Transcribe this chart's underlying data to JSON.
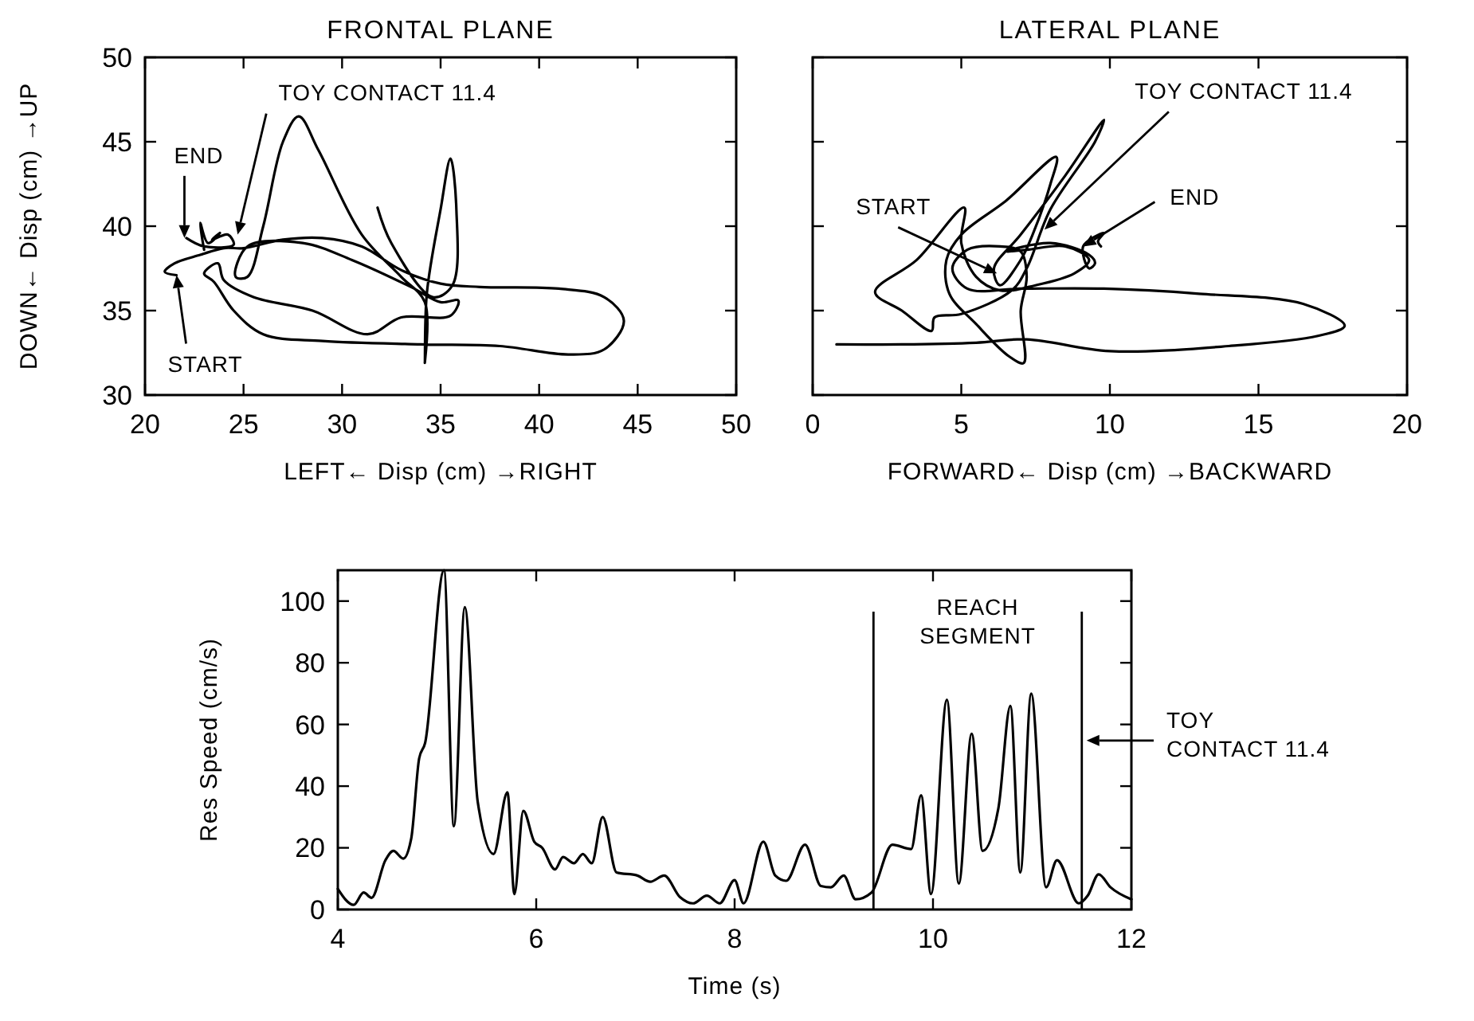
{
  "chart_data": [
    {
      "type": "line",
      "title": "FRONTAL PLANE",
      "xlabel": "LEFT← Disp (cm) →RIGHT",
      "ylabel": "DOWN← Disp (cm) →UP",
      "xlim": [
        20,
        50
      ],
      "ylim": [
        30,
        50
      ],
      "xticks": [
        20,
        25,
        30,
        35,
        40,
        45,
        50
      ],
      "yticks": [
        30,
        35,
        40,
        45,
        50
      ],
      "annotations": [
        {
          "text": "END",
          "x": 22,
          "y": 39.3
        },
        {
          "text": "TOY CONTACT 11.4",
          "x": 24.7,
          "y": 39.5
        },
        {
          "text": "START",
          "x": 21.6,
          "y": 37.1
        }
      ],
      "series": [
        {
          "color": "#000000",
          "x": [
            21.6,
            21.0,
            21.5,
            22.8,
            24.0,
            25.0,
            27.0,
            29.0,
            31.0,
            33.0,
            35.0,
            37.0,
            41.0,
            43.3,
            44.3,
            43.3,
            41.5,
            38.0,
            34.0,
            29.0,
            26.0,
            24.5,
            23.5,
            23.0,
            23.7,
            24.0,
            25.5,
            28.5,
            31.3,
            33.0,
            35.5,
            35.9,
            35.0,
            33.5,
            30.5,
            28.0,
            25.2,
            24.6,
            25.2,
            26.0,
            27.0,
            27.8,
            28.8,
            31.0,
            33.0,
            34.2,
            34.2,
            34.3,
            35.0,
            35.5,
            35.8,
            35.6,
            34.6,
            32.5,
            31.8,
            null,
            23.0,
            22.8,
            23.2,
            23.8,
            23.4,
            24.2,
            24.5,
            23.0,
            22.1
          ],
          "values": [
            37.1,
            37.3,
            37.8,
            38.3,
            38.7,
            38.7,
            39.2,
            39.3,
            38.8,
            37.4,
            36.6,
            36.4,
            36.3,
            35.8,
            34.4,
            32.7,
            32.4,
            32.9,
            33.0,
            33.2,
            33.6,
            35.0,
            36.7,
            37.2,
            37.8,
            36.8,
            35.8,
            35.0,
            33.6,
            34.6,
            34.7,
            35.6,
            35.5,
            36.4,
            38.0,
            39.0,
            38.8,
            37.0,
            37.0,
            40.0,
            45.0,
            46.5,
            44.5,
            39.5,
            37.0,
            35.5,
            31.9,
            36.0,
            41.0,
            44.0,
            41.0,
            36.5,
            35.8,
            39.0,
            41.1,
            null,
            38.6,
            40.2,
            39.0,
            39.6,
            39.2,
            39.5,
            38.9,
            38.8,
            39.3
          ]
        }
      ]
    },
    {
      "type": "line",
      "title": "LATERAL PLANE",
      "xlabel": "FORWARD← Disp (cm) →BACKWARD",
      "xlim": [
        0,
        20
      ],
      "ylim": [
        30,
        50
      ],
      "xticks": [
        0,
        5,
        10,
        15,
        20
      ],
      "yticks": [
        30,
        35,
        40,
        45,
        50
      ],
      "tick_labels": "x",
      "annotations": [
        {
          "text": "START",
          "x": 6.2,
          "y": 37.2
        },
        {
          "text": "TOY CONTACT 11.4",
          "x": 7.8,
          "y": 39.8
        },
        {
          "text": "END",
          "x": 9.1,
          "y": 38.8
        }
      ],
      "series": [
        {
          "color": "#000000",
          "x": [
            0.8,
            3.0,
            5.5,
            7.2,
            10,
            14,
            17,
            17.9,
            16.5,
            13,
            9.8,
            7.0,
            5.2,
            4.7,
            5.2,
            6.3,
            7.0,
            7.2,
            7.0,
            7.1,
            6.6,
            5.5,
            4.6,
            4.5,
            5.0,
            6.5,
            8.2,
            8.0,
            7.4,
            7.0,
            6.3,
            6.1,
            7.0,
            8.5,
            9.8,
            9.5,
            8.0,
            7.2,
            6.7,
            5.0,
            4.1,
            4.0,
            3.0,
            2.1,
            3.5,
            5.1,
            5.0,
            5.5,
            6.3,
            7.5,
            8.8,
            9.3,
            8.5,
            7.2,
            6.5,
            8.0,
            9.3,
            9.5,
            9.3,
            9.1,
            9.8,
            9.6,
            9.7
          ],
          "values": [
            33.0,
            33.0,
            33.1,
            33.3,
            32.6,
            32.9,
            33.5,
            34.1,
            35.4,
            36.0,
            36.3,
            36.3,
            36.3,
            37.5,
            38.6,
            38.8,
            38.5,
            37.0,
            35.0,
            31.9,
            32.3,
            34.2,
            36.0,
            38.0,
            39.5,
            41.5,
            44.1,
            42.5,
            39.5,
            38.0,
            36.5,
            37.5,
            39.5,
            43.0,
            46.3,
            45.0,
            41.0,
            37.5,
            36.2,
            34.8,
            34.6,
            33.8,
            35.0,
            36.1,
            38.0,
            41.1,
            39.0,
            37.0,
            36.2,
            36.5,
            37.2,
            38.0,
            38.8,
            38.6,
            38.5,
            39.0,
            38.3,
            37.8,
            37.5,
            38.8,
            39.6,
            39.1,
            38.8
          ]
        }
      ]
    },
    {
      "type": "line",
      "xlabel": "Time (s)",
      "ylabel": "Res Speed (cm/s)",
      "xlim": [
        4,
        12
      ],
      "ylim": [
        0,
        110
      ],
      "xticks": [
        4,
        6,
        8,
        10,
        12
      ],
      "yticks": [
        0,
        20,
        40,
        60,
        80,
        100
      ],
      "ref_lines": [
        {
          "axis": "x",
          "value": 9.4
        },
        {
          "axis": "x",
          "value": 11.5,
          "label": "TOY CONTACT 11.4"
        }
      ],
      "annotations": [
        "REACH SEGMENT"
      ],
      "series": [
        {
          "color": "#000000",
          "x": [
            4.0,
            4.16,
            4.26,
            4.34,
            4.48,
            4.56,
            4.66,
            4.74,
            4.82,
            4.88,
            5.07,
            5.17,
            5.28,
            5.41,
            5.57,
            5.71,
            5.78,
            5.87,
            5.98,
            6.06,
            6.19,
            6.27,
            6.38,
            6.47,
            6.56,
            6.67,
            6.81,
            7.02,
            7.15,
            7.29,
            7.45,
            7.58,
            7.72,
            7.85,
            8.0,
            8.09,
            8.29,
            8.41,
            8.52,
            8.71,
            8.87,
            8.97,
            9.1,
            9.22,
            9.38,
            9.59,
            9.78,
            9.88,
            9.98,
            10.14,
            10.26,
            10.39,
            10.5,
            10.66,
            10.78,
            10.88,
            10.99,
            11.14,
            11.25,
            11.47,
            11.56,
            11.67,
            11.79,
            12.0
          ],
          "values": [
            6.7,
            1.5,
            5.5,
            3.8,
            16,
            19,
            16.5,
            23,
            49,
            54,
            110,
            27,
            98,
            35,
            18,
            38,
            5,
            32,
            22,
            20,
            13,
            17,
            15,
            18,
            15,
            30,
            12,
            11,
            9,
            11,
            4,
            2,
            4.5,
            2,
            9.5,
            2,
            22,
            11,
            9.3,
            21,
            7.6,
            7.2,
            11,
            3.3,
            5.5,
            21,
            19.6,
            37,
            5,
            68,
            8.4,
            57,
            19,
            33,
            66,
            12,
            70,
            7.2,
            16,
            2,
            4.5,
            11.4,
            7.2,
            3.3
          ]
        }
      ]
    }
  ]
}
